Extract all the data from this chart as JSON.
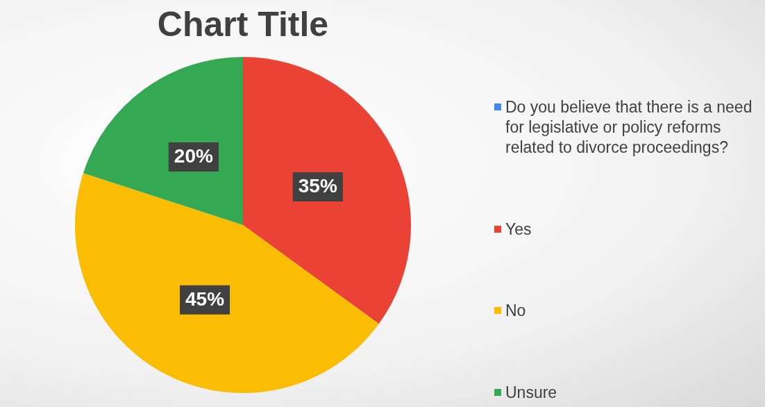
{
  "chart_data": {
    "type": "pie",
    "title": "Chart Title",
    "categories": [
      "Do you believe that there is a need for legislative or policy reforms related to divorce proceedings?",
      "Yes",
      "No",
      "Unsure"
    ],
    "values": [
      0,
      35,
      45,
      20
    ],
    "colors": [
      "#4285f4",
      "#ea4335",
      "#fbbc04",
      "#34a853"
    ],
    "value_labels": [
      null,
      "35%",
      "45%",
      "20%"
    ],
    "legend": "right"
  }
}
